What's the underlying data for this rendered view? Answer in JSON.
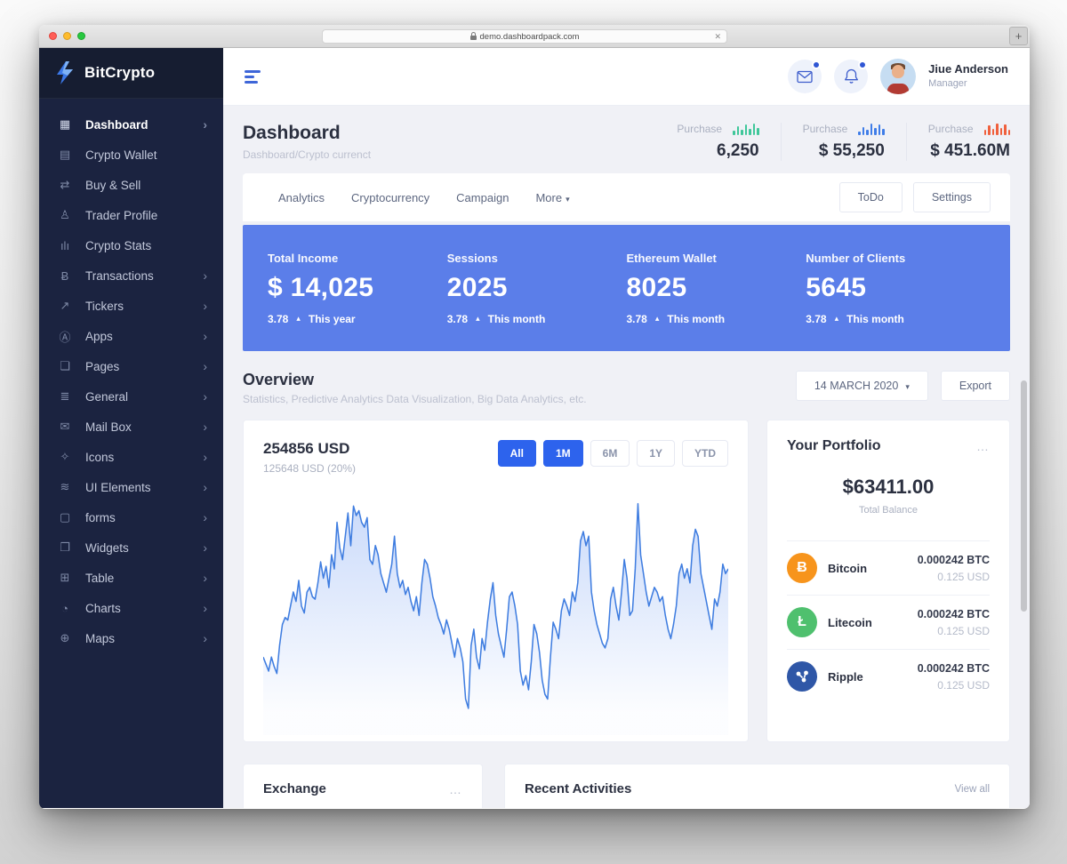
{
  "browser": {
    "url": "demo.dashboardpack.com",
    "clear_glyph": "✕",
    "new_tab_glyph": "+"
  },
  "colors": {
    "sidebar_bg": "#1b2340",
    "accent_blue": "#2d63ed",
    "banner_blue": "#5b7ee9",
    "chart_line": "#3f7de0",
    "bitcoin": "#f7941c",
    "litecoin": "#4fc06e",
    "ripple": "#2f57a7",
    "mini_chart_green": "#3fc79a",
    "mini_chart_blue": "#3f7de8",
    "mini_chart_red": "#f0603d"
  },
  "sidebar": {
    "brand": "BitCrypto",
    "items": [
      {
        "label": "Dashboard",
        "icon": "dashboard-icon",
        "glyph": "▦",
        "expandable": true,
        "active": true
      },
      {
        "label": "Crypto Wallet",
        "icon": "crypto-wallet-icon",
        "glyph": "▤",
        "expandable": false,
        "active": false
      },
      {
        "label": "Buy & Sell",
        "icon": "buy-sell-cart-icon",
        "glyph": "⇄",
        "expandable": false,
        "active": false
      },
      {
        "label": "Trader Profile",
        "icon": "trader-profile-icon",
        "glyph": "♙",
        "expandable": false,
        "active": false
      },
      {
        "label": "Crypto Stats",
        "icon": "crypto-stats-icon",
        "glyph": "ılı",
        "expandable": false,
        "active": false
      },
      {
        "label": "Transactions",
        "icon": "transactions-icon",
        "glyph": "Ƀ",
        "expandable": true,
        "active": false
      },
      {
        "label": "Tickers",
        "icon": "tickers-icon",
        "glyph": "↗",
        "expandable": true,
        "active": false
      },
      {
        "label": "Apps",
        "icon": "apps-icon",
        "glyph": "Ⓐ",
        "expandable": true,
        "active": false
      },
      {
        "label": "Pages",
        "icon": "pages-icon",
        "glyph": "❏",
        "expandable": true,
        "active": false
      },
      {
        "label": "General",
        "icon": "general-sliders-icon",
        "glyph": "≣",
        "expandable": true,
        "active": false
      },
      {
        "label": "Mail Box",
        "icon": "mailbox-icon",
        "glyph": "✉",
        "expandable": true,
        "active": false
      },
      {
        "label": "Icons",
        "icon": "icons-sparkle-icon",
        "glyph": "✧",
        "expandable": true,
        "active": false
      },
      {
        "label": "UI Elements",
        "icon": "ui-elements-icon",
        "glyph": "≋",
        "expandable": true,
        "active": false
      },
      {
        "label": "forms",
        "icon": "forms-icon",
        "glyph": "▢",
        "expandable": true,
        "active": false
      },
      {
        "label": "Widgets",
        "icon": "widgets-icon",
        "glyph": "❐",
        "expandable": true,
        "active": false
      },
      {
        "label": "Table",
        "icon": "table-icon",
        "glyph": "⊞",
        "expandable": true,
        "active": false
      },
      {
        "label": "Charts",
        "icon": "charts-icon",
        "glyph": "◔",
        "expandable": true,
        "active": false
      },
      {
        "label": "Maps",
        "icon": "maps-globe-icon",
        "glyph": "⊕",
        "expandable": true,
        "active": false
      }
    ],
    "chevron_glyph": "›"
  },
  "header": {
    "user_name": "Jiue Anderson",
    "user_role": "Manager"
  },
  "page": {
    "title": "Dashboard",
    "breadcrumb": "Dashboard/Crypto currenct",
    "purchase_stats": [
      {
        "label": "Purchase",
        "value": "6,250",
        "chart_color": "#3fc79a",
        "bars": [
          5,
          10,
          6,
          12,
          7,
          13,
          8
        ]
      },
      {
        "label": "Purchase",
        "value": "$ 55,250",
        "chart_color": "#3f7de8",
        "bars": [
          4,
          9,
          6,
          13,
          8,
          12,
          7
        ]
      },
      {
        "label": "Purchase",
        "value": "$ 451.60M",
        "chart_color": "#f0603d",
        "bars": [
          6,
          11,
          7,
          13,
          8,
          12,
          6
        ]
      }
    ],
    "tabs": [
      "Analytics",
      "Cryptocurrency",
      "Campaign"
    ],
    "more_tab": {
      "label": "More",
      "caret": "▾"
    },
    "action_buttons": [
      "ToDo",
      "Settings"
    ],
    "kpis": [
      {
        "label": "Total Income",
        "value": "$ 14,025",
        "delta": "3.78",
        "arrow": "▴",
        "period": "This year"
      },
      {
        "label": "Sessions",
        "value": "2025",
        "delta": "3.78",
        "arrow": "▴",
        "period": "This month"
      },
      {
        "label": "Ethereum Wallet",
        "value": "8025",
        "delta": "3.78",
        "arrow": "▴",
        "period": "This month"
      },
      {
        "label": "Number of Clients",
        "value": "5645",
        "delta": "3.78",
        "arrow": "▴",
        "period": "This month"
      }
    ],
    "overview": {
      "title": "Overview",
      "subtitle": "Statistics, Predictive Analytics Data Visualization, Big Data Analytics, etc.",
      "date_filter": "14 MARCH 2020",
      "date_caret": "▾",
      "export_label": "Export"
    },
    "chart_card": {
      "value": "254856 USD",
      "sub": "125648 USD (20%)",
      "ranges": [
        {
          "label": "All",
          "active": true
        },
        {
          "label": "1M",
          "active": true
        },
        {
          "label": "6M",
          "active": false
        },
        {
          "label": "1Y",
          "active": false
        },
        {
          "label": "YTD",
          "active": false
        }
      ]
    },
    "portfolio": {
      "title": "Your Portfolio",
      "menu_glyph": "…",
      "balance": "$63411.00",
      "balance_label": "Total Balance",
      "assets": [
        {
          "name": "Bitcoin",
          "icon": "bitcoin-icon",
          "glyph": "Ƀ",
          "color": "#f7941c",
          "btc": "0.000242 BTC",
          "usd": "0.125 USD"
        },
        {
          "name": "Litecoin",
          "icon": "litecoin-icon",
          "glyph": "Ł",
          "color": "#4fc06e",
          "btc": "0.000242 BTC",
          "usd": "0.125 USD"
        },
        {
          "name": "Ripple",
          "icon": "ripple-icon",
          "glyph": "",
          "color": "#2f57a7",
          "btc": "0.000242 BTC",
          "usd": "0.125 USD"
        }
      ]
    },
    "bottom": {
      "exchange_title": "Exchange",
      "exchange_menu": "…",
      "recent_title": "Recent Activities",
      "view_all": "View all"
    }
  },
  "chart_data": {
    "type": "area",
    "title": "254856 USD",
    "subtitle": "125648 USD (20%)",
    "xlabel": "",
    "ylabel": "",
    "axes_visible": false,
    "grid": false,
    "legend": "none",
    "y_scale": "normalized 0-100 (no axis labels shown in chart)",
    "values": [
      30,
      27,
      24,
      30,
      26,
      23,
      35,
      44,
      47,
      46,
      52,
      58,
      54,
      63,
      52,
      49,
      58,
      60,
      56,
      55,
      62,
      71,
      64,
      69,
      60,
      74,
      68,
      88,
      77,
      72,
      82,
      92,
      78,
      95,
      91,
      93,
      88,
      86,
      90,
      72,
      70,
      78,
      74,
      66,
      62,
      58,
      64,
      70,
      82,
      66,
      60,
      63,
      57,
      60,
      54,
      50,
      56,
      48,
      62,
      72,
      70,
      64,
      56,
      52,
      47,
      44,
      40,
      46,
      42,
      36,
      30,
      38,
      34,
      28,
      12,
      8,
      35,
      42,
      30,
      25,
      38,
      33,
      45,
      55,
      62,
      48,
      40,
      35,
      30,
      42,
      56,
      58,
      52,
      44,
      24,
      18,
      22,
      16,
      28,
      44,
      40,
      32,
      20,
      14,
      12,
      30,
      45,
      42,
      38,
      50,
      55,
      52,
      48,
      58,
      54,
      62,
      80,
      84,
      78,
      82,
      58,
      50,
      44,
      40,
      36,
      34,
      38,
      55,
      60,
      52,
      46,
      58,
      72,
      64,
      48,
      50,
      68,
      96,
      74,
      66,
      58,
      52,
      56,
      60,
      58,
      54,
      56,
      48,
      42,
      38,
      44,
      52,
      66,
      70,
      64,
      68,
      62,
      78,
      85,
      82,
      66,
      60,
      54,
      48,
      42,
      55,
      52,
      58,
      70,
      66,
      68
    ]
  }
}
